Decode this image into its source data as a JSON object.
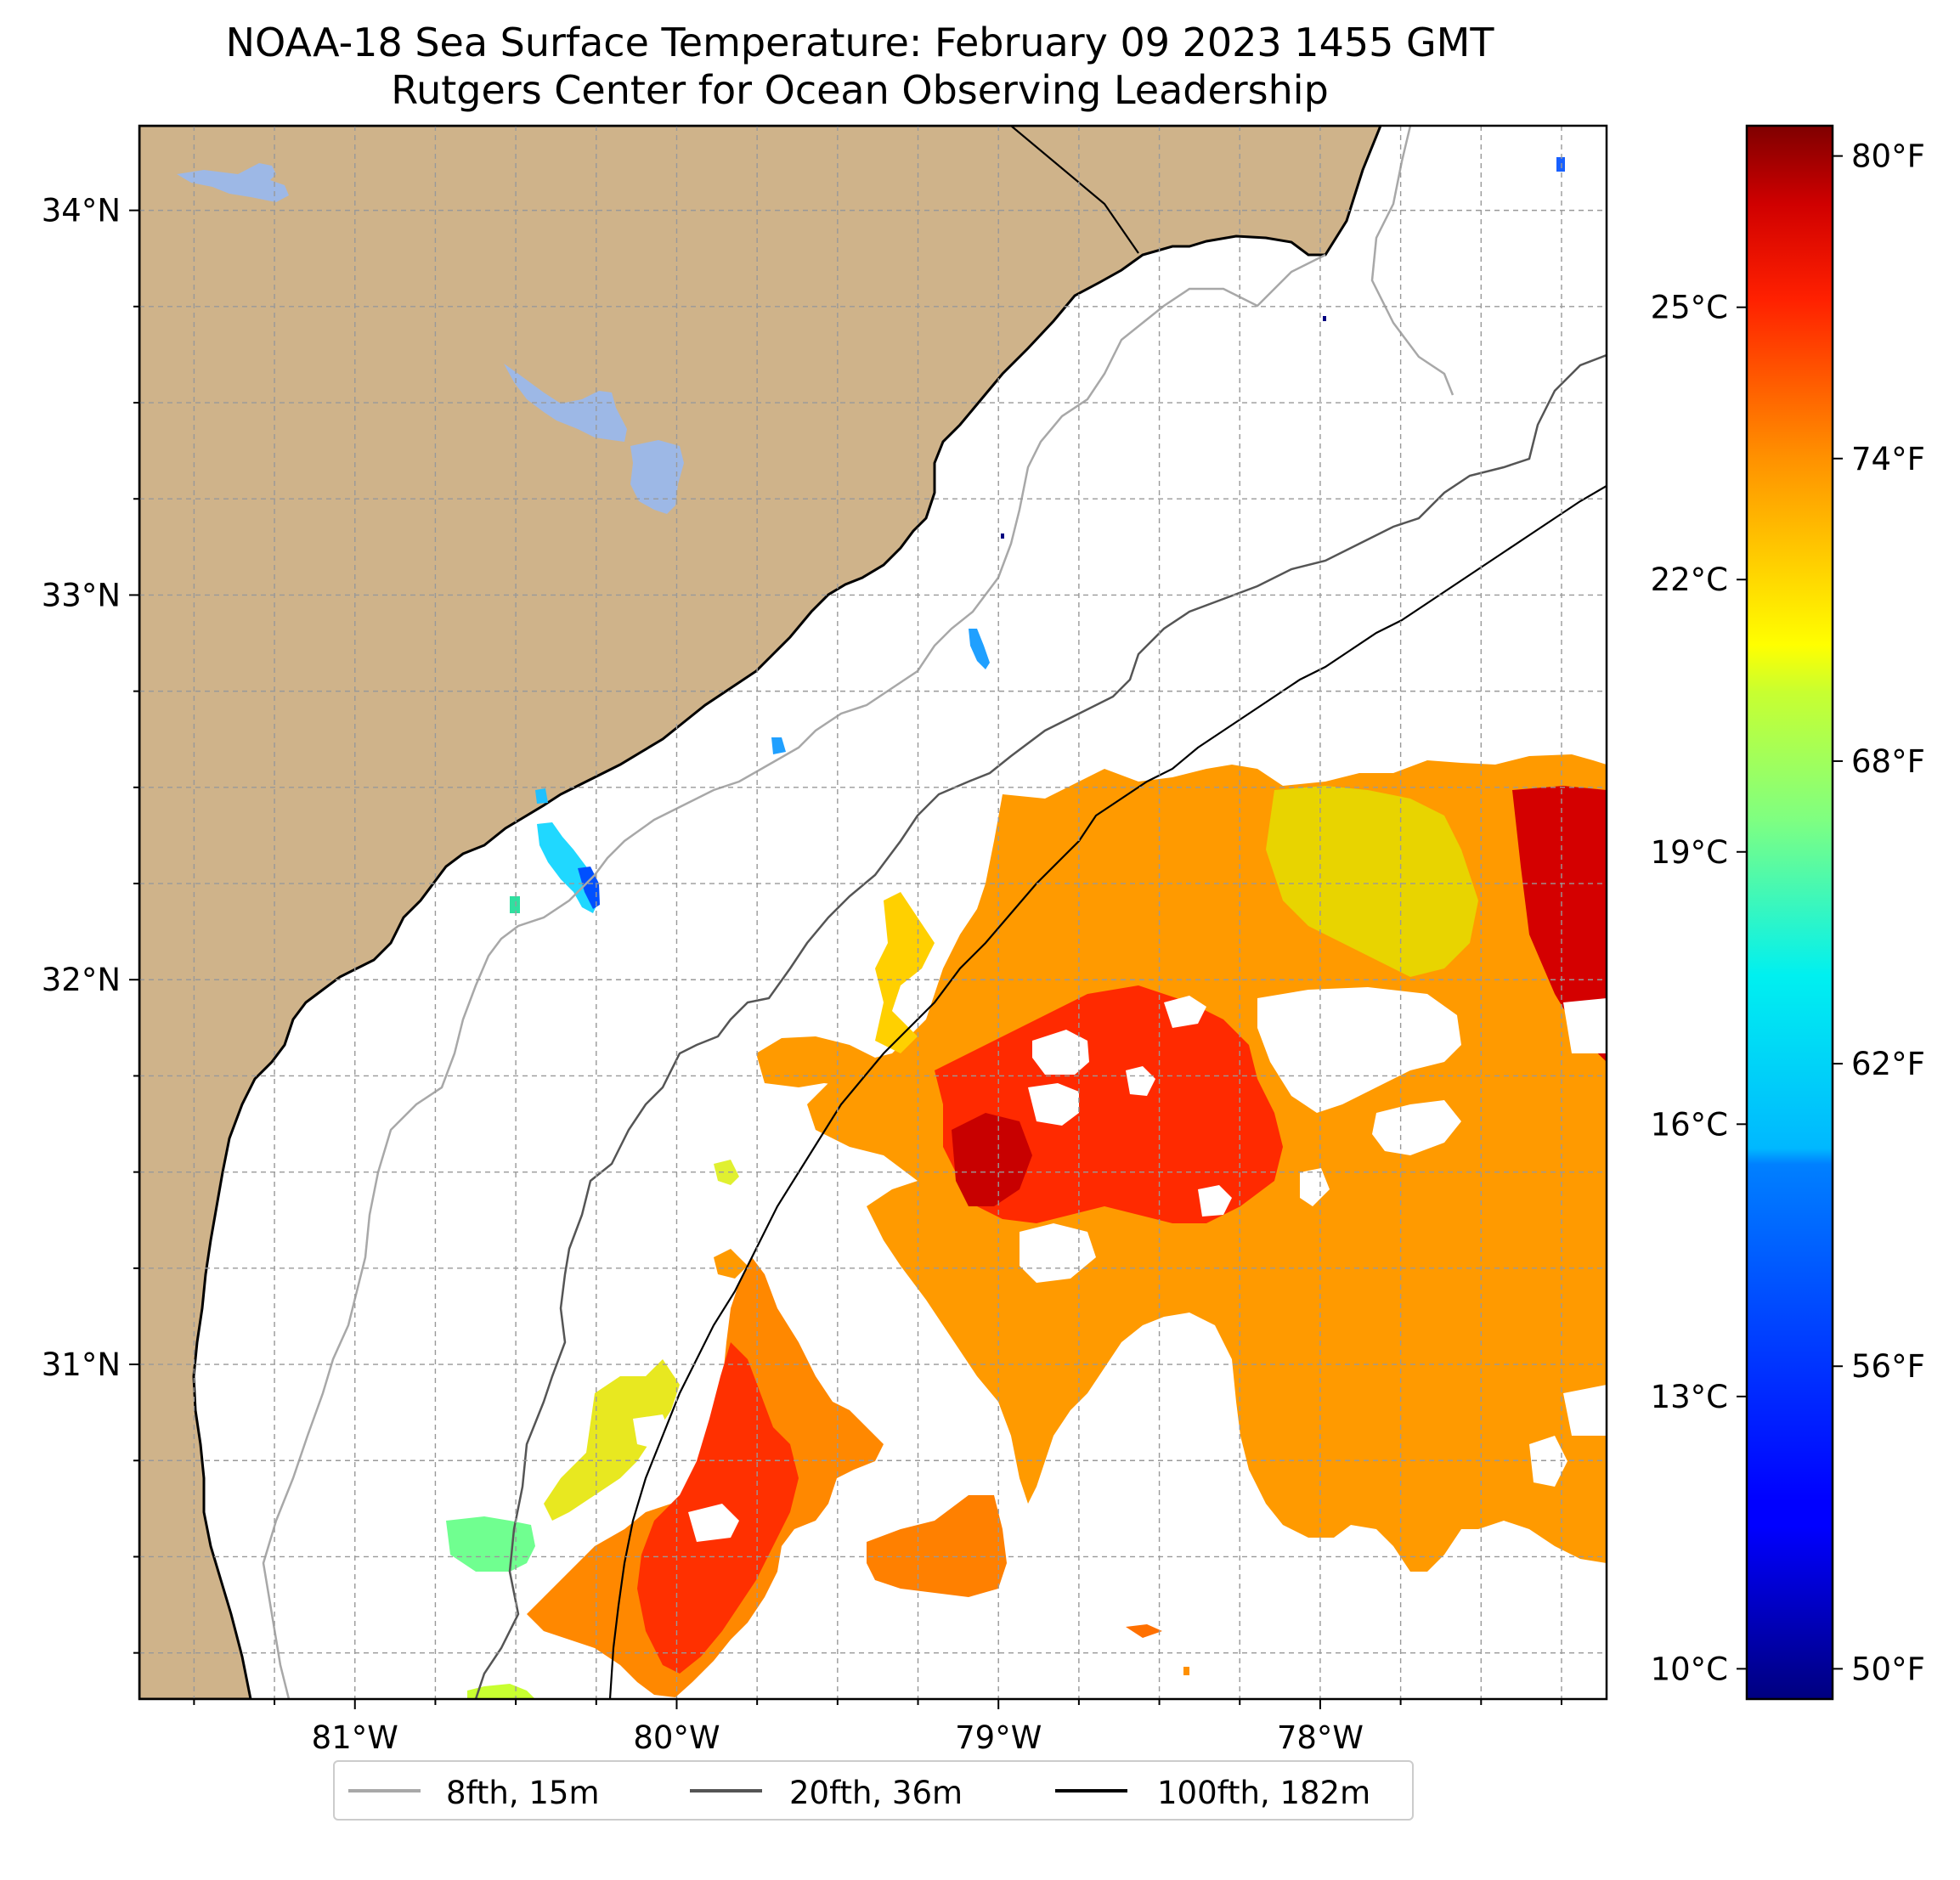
{
  "title": {
    "line1": "NOAA-18 Sea Surface Temperature: February 09 2023 1455 GMT",
    "line2": "Rutgers Center for Ocean Observing Leadership"
  },
  "map": {
    "lon_range": [
      -81.67,
      -77.11
    ],
    "lat_range": [
      30.13,
      34.22
    ],
    "x_ticks": [
      {
        "lon": -81,
        "label": "81°W"
      },
      {
        "lon": -80,
        "label": "80°W"
      },
      {
        "lon": -79,
        "label": "79°W"
      },
      {
        "lon": -78,
        "label": "78°W"
      }
    ],
    "y_ticks": [
      {
        "lat": 34,
        "label": "34°N"
      },
      {
        "lat": 33,
        "label": "33°N"
      },
      {
        "lat": 32,
        "label": "32°N"
      },
      {
        "lat": 31,
        "label": "31°N"
      }
    ],
    "grid": true,
    "land_color": "#cfb38a",
    "lake_color": "#9db8e6"
  },
  "colorbar": {
    "colormap": "jet",
    "range_f": [
      49.4,
      80.6
    ],
    "celsius_ticks": [
      {
        "value": 10,
        "label": "10°C"
      },
      {
        "value": 13,
        "label": "13°C"
      },
      {
        "value": 16,
        "label": "16°C"
      },
      {
        "value": 19,
        "label": "19°C"
      },
      {
        "value": 22,
        "label": "22°C"
      },
      {
        "value": 25,
        "label": "25°C"
      }
    ],
    "fahrenheit_ticks": [
      {
        "value": 50,
        "label": "50°F"
      },
      {
        "value": 56,
        "label": "56°F"
      },
      {
        "value": 62,
        "label": "62°F"
      },
      {
        "value": 68,
        "label": "68°F"
      },
      {
        "value": 74,
        "label": "74°F"
      },
      {
        "value": 80,
        "label": "80°F"
      }
    ]
  },
  "legend": {
    "position": "bottom-center",
    "items": [
      {
        "label": "8fth, 15m",
        "color": "#a8a8a8"
      },
      {
        "label": "20fth, 36m",
        "color": "#555555"
      },
      {
        "label": "100fth, 182m",
        "color": "#000000"
      }
    ]
  }
}
